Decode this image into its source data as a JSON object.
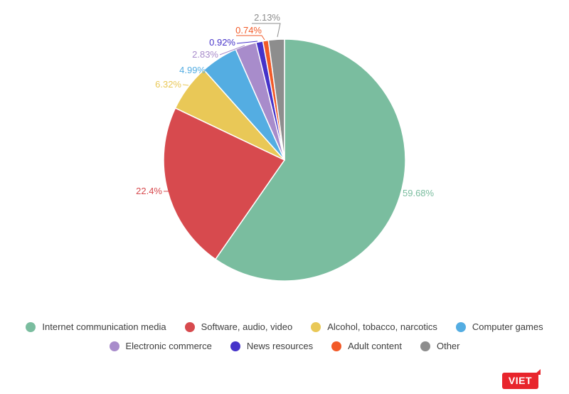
{
  "chart_data": {
    "type": "pie",
    "title": "",
    "legend_position": "bottom",
    "background": "#ffffff",
    "segments": [
      {
        "label": "Internet communication media",
        "value": 59.68,
        "display": "59.68%",
        "color": "#7abd9f"
      },
      {
        "label": "Software, audio, video",
        "value": 22.4,
        "display": "22.4%",
        "color": "#d74a4e"
      },
      {
        "label": "Alcohol, tobacco, narcotics",
        "value": 6.32,
        "display": "6.32%",
        "color": "#e9c857"
      },
      {
        "label": "Computer games",
        "value": 4.99,
        "display": "4.99%",
        "color": "#54ade2"
      },
      {
        "label": "Electronic commerce",
        "value": 2.83,
        "display": "2.83%",
        "color": "#a88ccb"
      },
      {
        "label": "News resources",
        "value": 0.92,
        "display": "0.92%",
        "color": "#4633c9"
      },
      {
        "label": "Adult content",
        "value": 0.74,
        "display": "0.74%",
        "color": "#f25a28"
      },
      {
        "label": "Other",
        "value": 2.13,
        "display": "2.13%",
        "color": "#8d8d8d"
      }
    ]
  },
  "branding": {
    "logo_text": "VIET",
    "logo_color": "#e8252c"
  }
}
